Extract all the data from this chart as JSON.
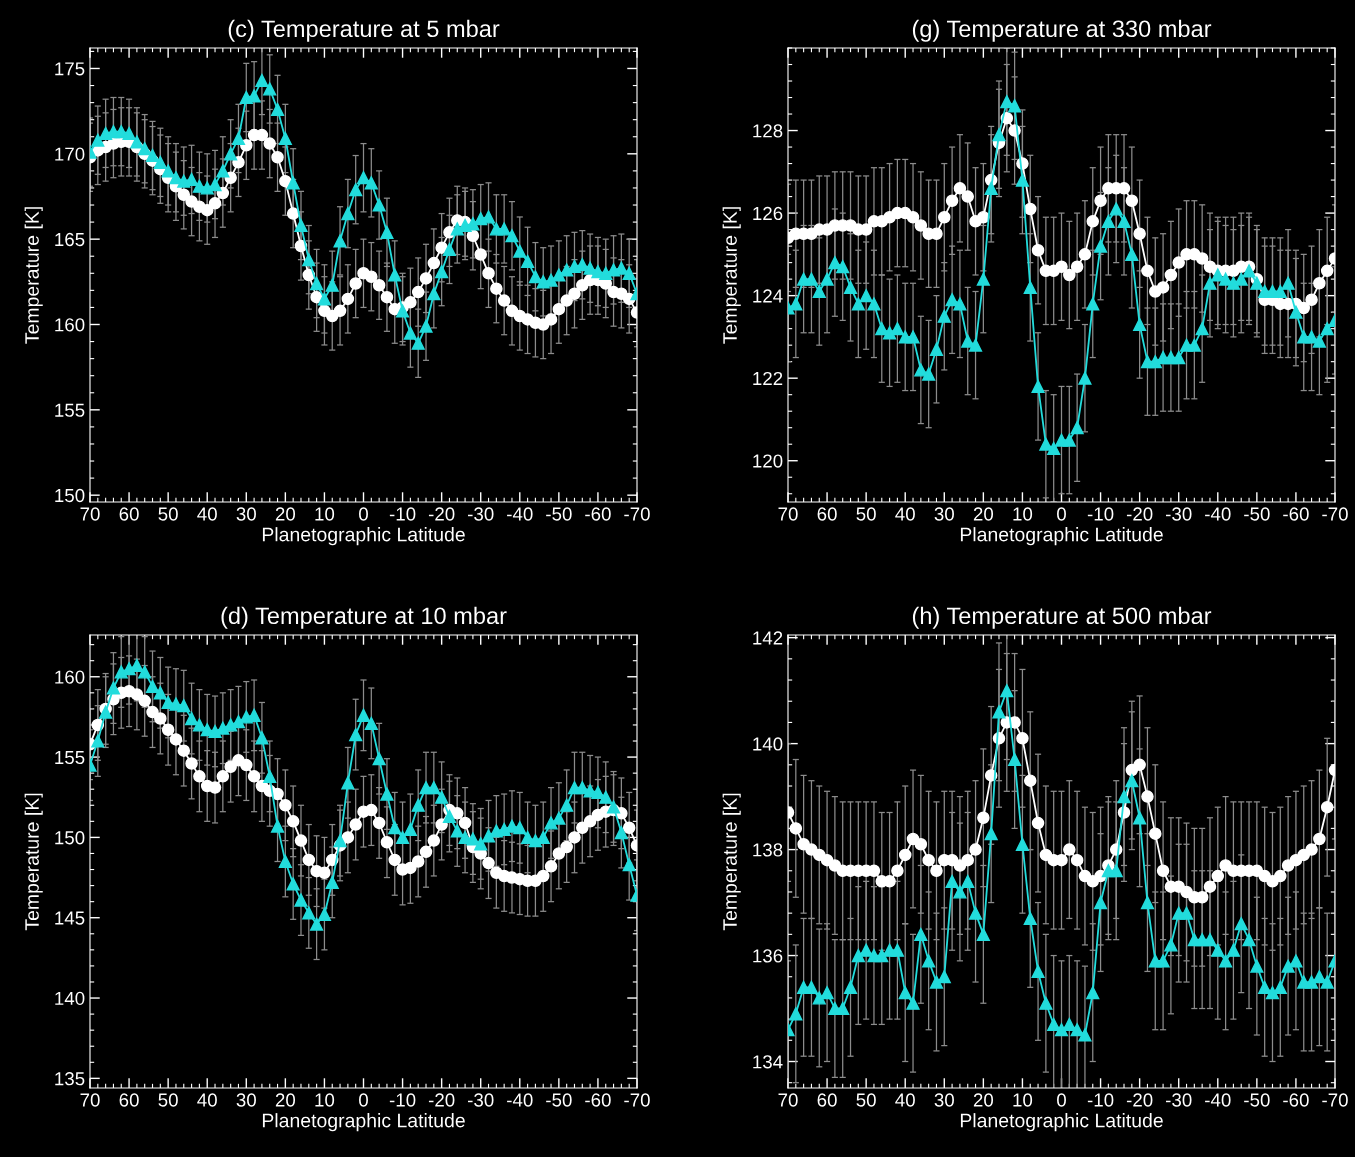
{
  "chart_data": [
    {
      "type": "line",
      "title": "(c) Temperature at 5 mbar",
      "xlabel": "Planetographic Latitude",
      "ylabel": "Temperature [K]",
      "xlim": [
        70,
        -70
      ],
      "xticks": [
        70,
        60,
        50,
        40,
        30,
        20,
        10,
        0,
        -10,
        -20,
        -30,
        -40,
        -50,
        -60,
        -70
      ],
      "ylim": [
        149.6,
        176.2
      ],
      "yticks": [
        150,
        155,
        160,
        165,
        170,
        175
      ],
      "x": [
        70,
        68,
        66,
        64,
        62,
        60,
        58,
        56,
        54,
        52,
        50,
        48,
        46,
        44,
        42,
        40,
        38,
        36,
        34,
        32,
        30,
        28,
        26,
        24,
        22,
        20,
        18,
        16,
        14,
        12,
        10,
        8,
        6,
        4,
        2,
        0,
        -2,
        -4,
        -6,
        -8,
        -10,
        -12,
        -14,
        -16,
        -18,
        -20,
        -22,
        -24,
        -26,
        -28,
        -30,
        -32,
        -34,
        -36,
        -38,
        -40,
        -42,
        -44,
        -46,
        -48,
        -50,
        -52,
        -54,
        -56,
        -58,
        -60,
        -62,
        -64,
        -66,
        -68,
        -70
      ],
      "series": [
        {
          "color": "#ffffff",
          "marker": "circle",
          "line_style": "solid",
          "values": [
            169.8,
            170.2,
            170.4,
            170.6,
            170.7,
            170.7,
            170.4,
            170.0,
            169.6,
            169.1,
            168.6,
            168.1,
            167.6,
            167.2,
            166.9,
            166.7,
            167.1,
            167.7,
            168.6,
            169.5,
            170.5,
            171.1,
            171.1,
            170.6,
            169.8,
            168.4,
            166.5,
            164.6,
            162.9,
            161.6,
            160.8,
            160.5,
            160.8,
            161.5,
            162.4,
            163.0,
            162.8,
            162.3,
            161.6,
            160.9,
            161.0,
            161.3,
            161.9,
            162.7,
            163.6,
            164.5,
            165.4,
            166.1,
            166.0,
            165.2,
            164.1,
            163.0,
            162.1,
            161.4,
            160.8,
            160.5,
            160.3,
            160.1,
            160.0,
            160.3,
            160.9,
            161.4,
            161.8,
            162.3,
            162.6,
            162.6,
            162.4,
            161.9,
            161.8,
            161.5,
            160.7
          ],
          "errors": [
            2,
            2,
            2,
            2,
            2,
            2,
            2,
            2,
            2,
            2,
            2,
            2,
            2,
            2,
            2,
            2,
            2,
            2,
            2,
            2,
            2,
            2,
            2,
            2,
            2,
            2,
            2,
            2,
            2,
            2,
            2,
            2,
            2,
            2,
            2,
            2,
            2,
            2,
            2,
            2,
            2,
            2,
            2,
            2,
            2,
            2,
            2,
            2,
            2,
            2,
            2,
            2,
            2,
            2,
            2,
            2,
            2,
            2,
            2,
            2,
            2,
            2,
            2,
            2,
            2,
            2,
            2,
            2,
            2,
            2,
            2
          ]
        },
        {
          "color": "#22dcdc",
          "marker": "triangle",
          "line_style": "solid",
          "values": [
            170.1,
            170.8,
            171.2,
            171.3,
            171.3,
            171.2,
            170.7,
            170.3,
            169.9,
            169.5,
            169.0,
            168.6,
            168.4,
            168.5,
            168.1,
            168.0,
            168.2,
            169.0,
            170.0,
            170.9,
            173.3,
            173.4,
            174.3,
            173.8,
            172.6,
            170.9,
            168.3,
            165.8,
            163.8,
            162.4,
            161.5,
            162.3,
            164.9,
            166.5,
            167.9,
            168.6,
            168.3,
            167.0,
            165.4,
            162.9,
            160.8,
            159.5,
            158.9,
            159.9,
            161.8,
            163.1,
            164.4,
            165.6,
            165.8,
            165.9,
            166.2,
            166.3,
            165.6,
            165.6,
            165.2,
            164.3,
            163.7,
            162.8,
            162.5,
            162.6,
            162.9,
            163.2,
            163.4,
            163.5,
            163.3,
            163.1,
            163.0,
            163.2,
            163.3,
            163.0,
            161.8
          ],
          "errors": [
            2,
            2,
            2,
            2,
            2,
            2,
            2,
            2,
            2,
            2,
            2,
            2,
            2,
            2,
            2,
            2,
            2,
            2,
            2,
            2,
            2,
            2,
            2,
            2,
            2,
            2,
            2,
            2,
            2,
            2,
            2,
            2,
            2,
            2,
            2,
            2,
            2,
            2,
            2,
            2,
            2,
            2,
            2,
            2,
            2,
            2,
            2,
            2,
            2,
            2,
            2,
            2,
            2,
            2,
            2,
            2,
            2,
            2,
            2,
            2,
            2,
            2,
            2,
            2,
            2,
            2,
            2,
            2,
            2,
            2,
            2
          ]
        }
      ]
    },
    {
      "type": "line",
      "title": "(g) Temperature at 330 mbar",
      "xlabel": "Planetographic Latitude",
      "ylabel": "Temperature [K]",
      "xlim": [
        70,
        -70
      ],
      "xticks": [
        70,
        60,
        50,
        40,
        30,
        20,
        10,
        0,
        -10,
        -20,
        -30,
        -40,
        -50,
        -60,
        -70
      ],
      "ylim": [
        119.0,
        130.0
      ],
      "yticks": [
        120,
        122,
        124,
        126,
        128
      ],
      "x": [
        70,
        68,
        66,
        64,
        62,
        60,
        58,
        56,
        54,
        52,
        50,
        48,
        46,
        44,
        42,
        40,
        38,
        36,
        34,
        32,
        30,
        28,
        26,
        24,
        22,
        20,
        18,
        16,
        14,
        12,
        10,
        8,
        6,
        4,
        2,
        0,
        -2,
        -4,
        -6,
        -8,
        -10,
        -12,
        -14,
        -16,
        -18,
        -20,
        -22,
        -24,
        -26,
        -28,
        -30,
        -32,
        -34,
        -36,
        -38,
        -40,
        -42,
        -44,
        -46,
        -48,
        -50,
        -52,
        -54,
        -56,
        -58,
        -60,
        -62,
        -64,
        -66,
        -68,
        -70
      ],
      "series": [
        {
          "color": "#ffffff",
          "marker": "circle",
          "line_style": "solid",
          "values": [
            125.4,
            125.5,
            125.5,
            125.5,
            125.6,
            125.6,
            125.7,
            125.7,
            125.7,
            125.6,
            125.6,
            125.8,
            125.8,
            125.9,
            126.0,
            126.0,
            125.9,
            125.7,
            125.5,
            125.5,
            125.9,
            126.3,
            126.6,
            126.4,
            125.8,
            125.9,
            126.8,
            127.7,
            128.3,
            128.0,
            127.2,
            126.1,
            125.1,
            124.6,
            124.6,
            124.7,
            124.5,
            124.7,
            125.0,
            125.8,
            126.3,
            126.6,
            126.6,
            126.6,
            126.3,
            125.5,
            124.6,
            124.1,
            124.2,
            124.5,
            124.8,
            125.0,
            125.0,
            124.9,
            124.7,
            124.6,
            124.6,
            124.6,
            124.7,
            124.7,
            124.4,
            123.9,
            123.9,
            123.8,
            123.8,
            123.8,
            123.7,
            123.9,
            124.3,
            124.6,
            124.9
          ],
          "errors": [
            1.3,
            1.3,
            1.3,
            1.3,
            1.3,
            1.3,
            1.3,
            1.3,
            1.3,
            1.3,
            1.3,
            1.3,
            1.3,
            1.3,
            1.3,
            1.3,
            1.3,
            1.3,
            1.3,
            1.3,
            1.3,
            1.3,
            1.3,
            1.3,
            1.3,
            1.3,
            1.3,
            1.3,
            1.3,
            1.3,
            1.3,
            1.3,
            1.3,
            1.3,
            1.3,
            1.3,
            1.3,
            1.3,
            1.3,
            1.3,
            1.3,
            1.3,
            1.3,
            1.3,
            1.3,
            1.3,
            1.3,
            1.3,
            1.3,
            1.3,
            1.3,
            1.3,
            1.3,
            1.3,
            1.3,
            1.3,
            1.3,
            1.3,
            1.3,
            1.3,
            1.3,
            1.3,
            1.3,
            1.3,
            1.3,
            1.3,
            1.3,
            1.3,
            1.3,
            1.3,
            1.3
          ]
        },
        {
          "color": "#22dcdc",
          "marker": "triangle",
          "line_style": "solid",
          "values": [
            123.7,
            123.8,
            124.4,
            124.4,
            124.1,
            124.4,
            124.8,
            124.7,
            124.2,
            123.8,
            124.0,
            123.8,
            123.2,
            123.1,
            123.2,
            123.0,
            123.0,
            122.2,
            122.1,
            122.7,
            123.5,
            123.9,
            123.8,
            122.9,
            122.8,
            124.4,
            126.6,
            127.9,
            128.7,
            128.6,
            126.8,
            124.2,
            121.8,
            120.4,
            120.3,
            120.5,
            120.5,
            120.8,
            122.0,
            123.8,
            125.2,
            125.8,
            126.1,
            125.8,
            125.0,
            123.3,
            122.4,
            122.4,
            122.5,
            122.5,
            122.5,
            122.8,
            122.8,
            123.2,
            124.3,
            124.5,
            124.4,
            124.3,
            124.4,
            124.6,
            124.3,
            124.1,
            124.1,
            124.1,
            124.3,
            123.6,
            123.0,
            123.0,
            122.9,
            123.2,
            123.4
          ],
          "errors": [
            1.3,
            1.3,
            1.3,
            1.3,
            1.3,
            1.3,
            1.3,
            1.3,
            1.3,
            1.3,
            1.3,
            1.3,
            1.3,
            1.3,
            1.3,
            1.3,
            1.3,
            1.3,
            1.3,
            1.3,
            1.3,
            1.3,
            1.3,
            1.3,
            1.3,
            1.3,
            1.3,
            1.3,
            1.3,
            1.3,
            1.3,
            1.3,
            1.3,
            1.3,
            1.3,
            1.3,
            1.3,
            1.3,
            1.3,
            1.3,
            1.3,
            1.3,
            1.3,
            1.3,
            1.3,
            1.3,
            1.3,
            1.3,
            1.3,
            1.3,
            1.3,
            1.3,
            1.3,
            1.3,
            1.3,
            1.3,
            1.3,
            1.3,
            1.3,
            1.3,
            1.3,
            1.3,
            1.3,
            1.3,
            1.3,
            1.3,
            1.3,
            1.3,
            1.3,
            1.3,
            1.3
          ]
        }
      ]
    },
    {
      "type": "line",
      "title": "(d) Temperature at 10 mbar",
      "xlabel": "Planetographic Latitude",
      "ylabel": "Temperature [K]",
      "xlim": [
        70,
        -70
      ],
      "xticks": [
        70,
        60,
        50,
        40,
        30,
        20,
        10,
        0,
        -10,
        -20,
        -30,
        -40,
        -50,
        -60,
        -70
      ],
      "ylim": [
        134.4,
        162.6
      ],
      "yticks": [
        135,
        140,
        145,
        150,
        155,
        160
      ],
      "x": [
        70,
        68,
        66,
        64,
        62,
        60,
        58,
        56,
        54,
        52,
        50,
        48,
        46,
        44,
        42,
        40,
        38,
        36,
        34,
        32,
        30,
        28,
        26,
        24,
        22,
        20,
        18,
        16,
        14,
        12,
        10,
        8,
        6,
        4,
        2,
        0,
        -2,
        -4,
        -6,
        -8,
        -10,
        -12,
        -14,
        -16,
        -18,
        -20,
        -22,
        -24,
        -26,
        -28,
        -30,
        -32,
        -34,
        -36,
        -38,
        -40,
        -42,
        -44,
        -46,
        -48,
        -50,
        -52,
        -54,
        -56,
        -58,
        -60,
        -62,
        -64,
        -66,
        -68,
        -70
      ],
      "series": [
        {
          "color": "#ffffff",
          "marker": "circle",
          "line_style": "solid",
          "values": [
            155.8,
            157.0,
            158.0,
            158.6,
            159.0,
            159.1,
            158.9,
            158.5,
            157.8,
            157.4,
            156.7,
            156.1,
            155.4,
            154.6,
            153.8,
            153.2,
            153.1,
            153.8,
            154.4,
            154.8,
            154.5,
            153.8,
            153.2,
            152.9,
            152.7,
            152.0,
            151.0,
            149.8,
            148.6,
            147.9,
            147.8,
            148.6,
            149.5,
            150.0,
            150.8,
            151.6,
            151.7,
            150.9,
            149.7,
            148.6,
            148.0,
            148.1,
            148.5,
            149.1,
            149.8,
            150.8,
            151.7,
            151.5,
            150.9,
            149.4,
            149.0,
            148.4,
            147.8,
            147.6,
            147.5,
            147.4,
            147.3,
            147.3,
            147.6,
            148.2,
            149.0,
            149.4,
            150.0,
            150.6,
            151.0,
            151.4,
            151.6,
            151.7,
            151.5,
            150.6,
            149.5
          ],
          "errors": [
            2.2,
            2.2,
            2.2,
            2.2,
            2.2,
            2.2,
            2.2,
            2.2,
            2.2,
            2.2,
            2.2,
            2.2,
            2.2,
            2.2,
            2.2,
            2.2,
            2.2,
            2.2,
            2.2,
            2.2,
            2.2,
            2.2,
            2.2,
            2.2,
            2.2,
            2.2,
            2.2,
            2.2,
            2.2,
            2.2,
            2.2,
            2.2,
            2.2,
            2.2,
            2.2,
            2.2,
            2.2,
            2.2,
            2.2,
            2.2,
            2.2,
            2.2,
            2.2,
            2.2,
            2.2,
            2.2,
            2.2,
            2.2,
            2.2,
            2.2,
            2.2,
            2.2,
            2.2,
            2.2,
            2.2,
            2.2,
            2.2,
            2.2,
            2.2,
            2.2,
            2.2,
            2.2,
            2.2,
            2.2,
            2.2,
            2.2,
            2.2,
            2.2,
            2.2,
            2.2,
            2.2
          ]
        },
        {
          "color": "#22dcdc",
          "marker": "triangle",
          "line_style": "solid",
          "values": [
            154.5,
            156.0,
            157.8,
            159.3,
            160.3,
            160.5,
            160.7,
            160.3,
            159.4,
            159.0,
            158.4,
            158.3,
            158.2,
            157.4,
            157.0,
            156.7,
            156.6,
            156.8,
            157.0,
            157.2,
            157.5,
            157.6,
            156.2,
            153.8,
            150.7,
            148.5,
            147.1,
            146.1,
            145.3,
            144.6,
            145.2,
            147.2,
            149.8,
            153.4,
            156.4,
            157.6,
            157.1,
            154.9,
            152.7,
            150.6,
            150.0,
            150.5,
            152.0,
            153.1,
            153.1,
            152.5,
            151.3,
            150.4,
            150.0,
            149.9,
            149.6,
            150.1,
            150.4,
            150.5,
            150.7,
            150.6,
            150.0,
            149.8,
            150.0,
            150.9,
            151.2,
            152.0,
            153.1,
            153.1,
            152.9,
            152.8,
            152.5,
            151.9,
            150.3,
            148.3,
            146.4
          ],
          "errors": [
            2.2,
            2.2,
            2.2,
            2.2,
            2.2,
            2.2,
            2.2,
            2.2,
            2.2,
            2.2,
            2.2,
            2.2,
            2.2,
            2.2,
            2.2,
            2.2,
            2.2,
            2.2,
            2.2,
            2.2,
            2.2,
            2.2,
            2.2,
            2.2,
            2.2,
            2.2,
            2.2,
            2.2,
            2.2,
            2.2,
            2.2,
            2.2,
            2.2,
            2.2,
            2.2,
            2.2,
            2.2,
            2.2,
            2.2,
            2.2,
            2.2,
            2.2,
            2.2,
            2.2,
            2.2,
            2.2,
            2.2,
            2.2,
            2.2,
            2.2,
            2.2,
            2.2,
            2.2,
            2.2,
            2.2,
            2.2,
            2.2,
            2.2,
            2.2,
            2.2,
            2.2,
            2.2,
            2.2,
            2.2,
            2.2,
            2.2,
            2.2,
            2.2,
            2.2,
            2.2,
            2.2
          ]
        }
      ]
    },
    {
      "type": "line",
      "title": "(h) Temperature at 500 mbar",
      "xlabel": "Planetographic Latitude",
      "ylabel": "Temperature [K]",
      "xlim": [
        70,
        -70
      ],
      "xticks": [
        70,
        60,
        50,
        40,
        30,
        20,
        10,
        0,
        -10,
        -20,
        -30,
        -40,
        -50,
        -60,
        -70
      ],
      "ylim": [
        133.5,
        142.05
      ],
      "yticks": [
        134,
        136,
        138,
        140,
        142
      ],
      "x": [
        70,
        68,
        66,
        64,
        62,
        60,
        58,
        56,
        54,
        52,
        50,
        48,
        46,
        44,
        42,
        40,
        38,
        36,
        34,
        32,
        30,
        28,
        26,
        24,
        22,
        20,
        18,
        16,
        14,
        12,
        10,
        8,
        6,
        4,
        2,
        0,
        -2,
        -4,
        -6,
        -8,
        -10,
        -12,
        -14,
        -16,
        -18,
        -20,
        -22,
        -24,
        -26,
        -28,
        -30,
        -32,
        -34,
        -36,
        -38,
        -40,
        -42,
        -44,
        -46,
        -48,
        -50,
        -52,
        -54,
        -56,
        -58,
        -60,
        -62,
        -64,
        -66,
        -68,
        -70
      ],
      "series": [
        {
          "color": "#ffffff",
          "marker": "circle",
          "line_style": "solid",
          "values": [
            138.7,
            138.4,
            138.1,
            138.0,
            137.9,
            137.8,
            137.7,
            137.6,
            137.6,
            137.6,
            137.6,
            137.6,
            137.4,
            137.4,
            137.6,
            137.9,
            138.2,
            138.1,
            137.8,
            137.6,
            137.8,
            137.8,
            137.7,
            137.8,
            138.0,
            138.6,
            139.4,
            140.1,
            140.4,
            140.4,
            140.1,
            139.3,
            138.5,
            137.9,
            137.8,
            137.8,
            138.0,
            137.8,
            137.5,
            137.4,
            137.5,
            137.7,
            138.0,
            138.7,
            139.5,
            139.6,
            139.0,
            138.3,
            137.6,
            137.3,
            137.3,
            137.2,
            137.1,
            137.1,
            137.3,
            137.5,
            137.7,
            137.6,
            137.6,
            137.6,
            137.6,
            137.5,
            137.4,
            137.5,
            137.7,
            137.8,
            137.9,
            138.0,
            138.2,
            138.8,
            139.5
          ],
          "errors": [
            1.3,
            1.3,
            1.3,
            1.3,
            1.3,
            1.3,
            1.3,
            1.3,
            1.3,
            1.3,
            1.3,
            1.3,
            1.3,
            1.3,
            1.3,
            1.3,
            1.3,
            1.3,
            1.3,
            1.3,
            1.3,
            1.3,
            1.3,
            1.3,
            1.3,
            1.3,
            1.3,
            1.3,
            1.3,
            1.3,
            1.3,
            1.3,
            1.3,
            1.3,
            1.3,
            1.3,
            1.3,
            1.3,
            1.3,
            1.3,
            1.3,
            1.3,
            1.3,
            1.3,
            1.3,
            1.3,
            1.3,
            1.3,
            1.3,
            1.3,
            1.3,
            1.3,
            1.3,
            1.3,
            1.3,
            1.3,
            1.3,
            1.3,
            1.3,
            1.3,
            1.3,
            1.3,
            1.3,
            1.3,
            1.3,
            1.3,
            1.3,
            1.3,
            1.3,
            1.3,
            1.3
          ]
        },
        {
          "color": "#22dcdc",
          "marker": "triangle",
          "line_style": "solid",
          "values": [
            134.6,
            134.9,
            135.4,
            135.4,
            135.2,
            135.3,
            135.0,
            135.0,
            135.4,
            136.0,
            136.1,
            136.0,
            136.0,
            136.1,
            136.1,
            135.3,
            135.1,
            136.4,
            135.9,
            135.5,
            135.6,
            137.4,
            137.2,
            137.4,
            136.8,
            136.4,
            138.3,
            140.6,
            141.0,
            139.7,
            138.1,
            136.7,
            135.7,
            135.1,
            134.7,
            134.6,
            134.7,
            134.6,
            134.5,
            135.3,
            137.0,
            137.6,
            137.6,
            139.0,
            139.3,
            138.6,
            137.0,
            135.9,
            135.9,
            136.2,
            136.8,
            136.8,
            136.3,
            136.3,
            136.3,
            136.1,
            135.9,
            136.1,
            136.6,
            136.3,
            135.8,
            135.4,
            135.3,
            135.4,
            135.8,
            135.9,
            135.5,
            135.5,
            135.6,
            135.5,
            135.9
          ],
          "errors": [
            1.3,
            1.3,
            1.3,
            1.3,
            1.3,
            1.3,
            1.3,
            1.3,
            1.3,
            1.3,
            1.3,
            1.3,
            1.3,
            1.3,
            1.3,
            1.3,
            1.3,
            1.3,
            1.3,
            1.3,
            1.3,
            1.3,
            1.3,
            1.3,
            1.3,
            1.3,
            1.3,
            1.3,
            1.3,
            1.3,
            1.3,
            1.3,
            1.3,
            1.3,
            1.3,
            1.3,
            1.3,
            1.3,
            1.3,
            1.3,
            1.3,
            1.3,
            1.3,
            1.3,
            1.3,
            1.3,
            1.3,
            1.3,
            1.3,
            1.3,
            1.3,
            1.3,
            1.3,
            1.3,
            1.3,
            1.3,
            1.3,
            1.3,
            1.3,
            1.3,
            1.3,
            1.3,
            1.3,
            1.3,
            1.3,
            1.3,
            1.3,
            1.3,
            1.3,
            1.3,
            1.3
          ]
        }
      ]
    }
  ]
}
